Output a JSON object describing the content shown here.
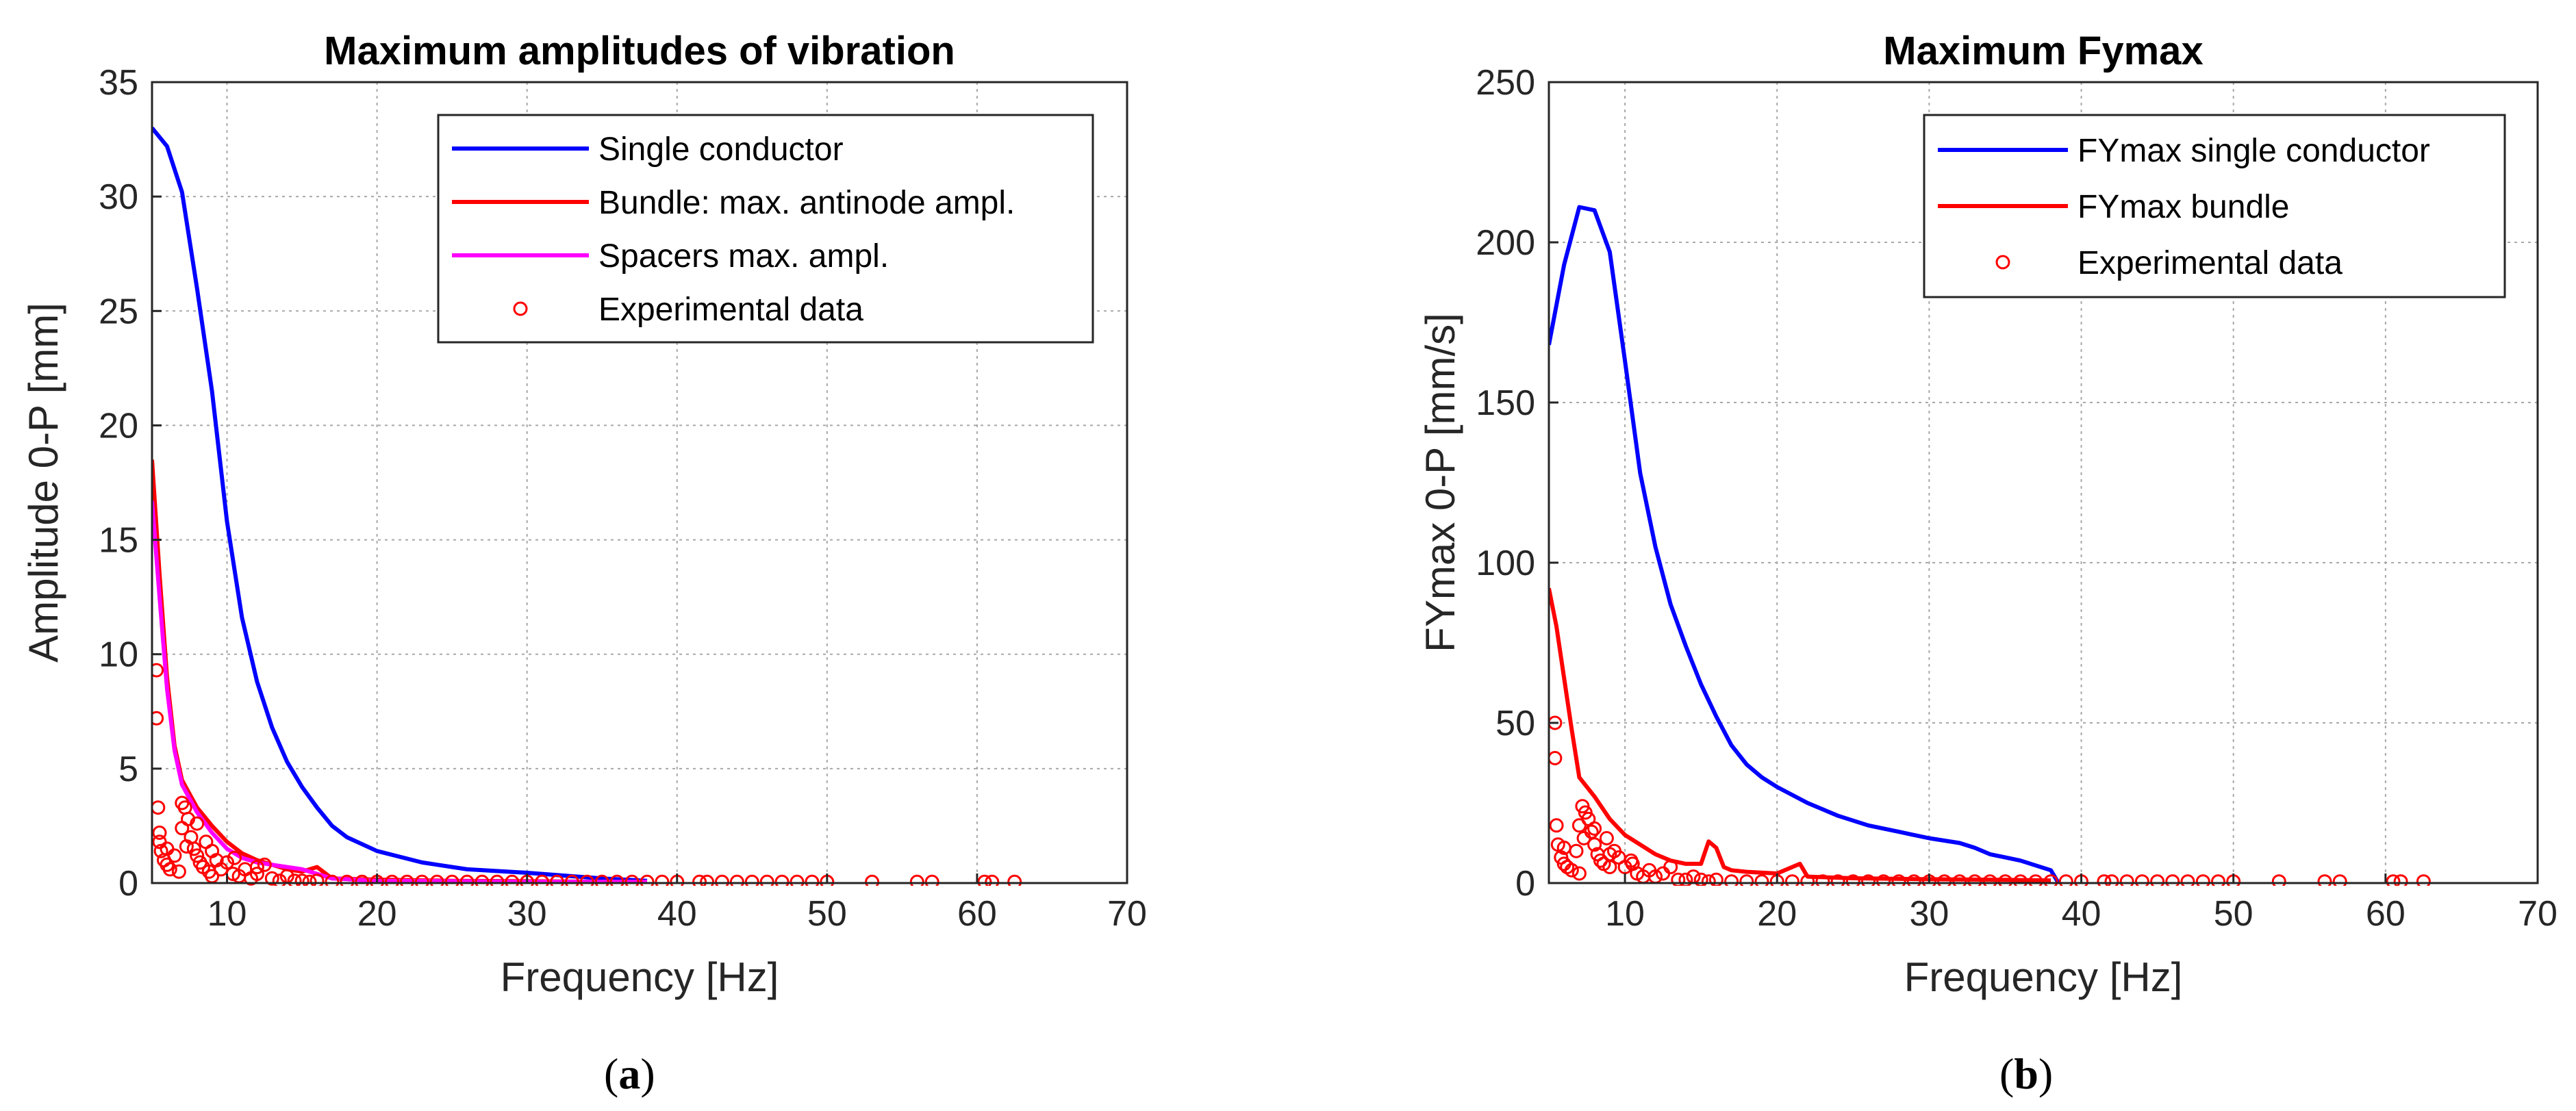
{
  "colors": {
    "blue": "#0000ff",
    "red": "#ff0000",
    "magenta": "#ff00ff"
  },
  "chart_data": [
    {
      "type": "line",
      "title": "Maximum amplitudes of vibration",
      "xlabel": "Frequency  [Hz]",
      "ylabel": "Amplitude 0-P [mm]",
      "xlim": [
        5,
        70
      ],
      "ylim": [
        0,
        35
      ],
      "xticks": [
        10,
        20,
        30,
        40,
        50,
        60,
        70
      ],
      "yticks": [
        0,
        5,
        10,
        15,
        20,
        25,
        30,
        35
      ],
      "caption": "a",
      "legend_position": "top-right",
      "series": [
        {
          "name": "Single conductor",
          "color": "blue",
          "kind": "line",
          "x": [
            5,
            6,
            7,
            8,
            9,
            10,
            11,
            12,
            13,
            14,
            15,
            16,
            17,
            18,
            20,
            23,
            26,
            30,
            33,
            35,
            38
          ],
          "y": [
            33,
            32.2,
            30.2,
            26,
            21.5,
            15.8,
            11.6,
            8.8,
            6.8,
            5.3,
            4.2,
            3.3,
            2.5,
            2.0,
            1.4,
            0.9,
            0.6,
            0.45,
            0.3,
            0.2,
            0.1
          ]
        },
        {
          "name": "Bundle: max. antinode ampl.",
          "color": "red",
          "kind": "line",
          "x": [
            5,
            5.5,
            6,
            6.5,
            7,
            8,
            9,
            10,
            11,
            12,
            13,
            14,
            15,
            16,
            17,
            20,
            25,
            30,
            35,
            38
          ],
          "y": [
            18.5,
            13.5,
            9,
            6,
            4.5,
            3.3,
            2.5,
            1.8,
            1.3,
            1.0,
            0.8,
            0.6,
            0.5,
            0.7,
            0.2,
            0.15,
            0.1,
            0.08,
            0.05,
            0.05
          ]
        },
        {
          "name": "Spacers max. ampl.",
          "color": "magenta",
          "kind": "line",
          "x": [
            5,
            5.5,
            6,
            6.5,
            7,
            8,
            9,
            10,
            11,
            12,
            13,
            14,
            15,
            16,
            17,
            20,
            25,
            30,
            35,
            38
          ],
          "y": [
            16.7,
            12.5,
            8.5,
            5.8,
            4.3,
            3.1,
            2.2,
            1.5,
            1.1,
            0.9,
            0.8,
            0.7,
            0.6,
            0.4,
            0.2,
            0.1,
            0.08,
            0.06,
            0.05,
            0.05
          ]
        },
        {
          "name": "Experimental data",
          "color": "red",
          "kind": "scatter",
          "x": [
            5.3,
            5.3,
            5.4,
            5.5,
            5.6,
            5.8,
            6.0,
            6.2,
            6.5,
            6.8,
            7.0,
            7.2,
            7.4,
            7.6,
            7.8,
            8.0,
            8.2,
            8.4,
            8.6,
            8.8,
            9.0,
            9.3,
            9.6,
            10.0,
            10.4,
            10.8,
            11.2,
            11.6,
            12.0,
            12.5,
            13.0,
            13.5,
            14.0,
            14.5,
            15.0,
            15.5,
            16.0,
            17.0,
            18.0,
            19.0,
            20.0,
            21.0,
            22.0,
            23.0,
            24.0,
            25.0,
            26.0,
            27.0,
            28.0,
            29.0,
            30.0,
            31.0,
            32.0,
            33.0,
            34.0,
            35.0,
            36.0,
            37.0,
            38.0,
            39.0,
            40.0,
            41.5,
            42.0,
            43.0,
            44.0,
            45.0,
            46.0,
            47.0,
            48.0,
            49.0,
            50.0,
            53.0,
            56.0,
            57.0,
            60.5,
            61.0,
            62.5,
            5.5,
            6.0,
            7.0,
            7.3,
            8.0,
            9.0,
            10.5,
            12.0
          ],
          "y": [
            9.3,
            7.2,
            3.3,
            2.2,
            1.4,
            1.0,
            0.8,
            0.6,
            1.2,
            0.5,
            3.5,
            3.3,
            2.8,
            2.0,
            1.5,
            1.2,
            0.9,
            0.7,
            1.8,
            0.5,
            1.4,
            1.0,
            0.6,
            0.9,
            0.4,
            0.3,
            0.6,
            0.2,
            0.4,
            0.8,
            0.2,
            0.1,
            0.3,
            0.1,
            0.1,
            0.05,
            0.1,
            0.05,
            0.05,
            0.05,
            0.05,
            0.05,
            0.05,
            0.05,
            0.05,
            0.05,
            0.05,
            0.05,
            0.05,
            0.05,
            0.05,
            0.05,
            0.05,
            0.05,
            0.05,
            0.05,
            0.05,
            0.05,
            0.05,
            0.05,
            0.05,
            0.05,
            0.05,
            0.05,
            0.05,
            0.05,
            0.05,
            0.05,
            0.05,
            0.05,
            0.05,
            0.05,
            0.05,
            0.05,
            0.05,
            0.05,
            0.05,
            1.8,
            1.5,
            2.4,
            1.6,
            2.6,
            0.3,
            1.1,
            0.7
          ]
        }
      ]
    },
    {
      "type": "line",
      "title": "Maximum Fymax",
      "xlabel": "Frequency  [Hz]",
      "ylabel": "FYmax 0-P [mm/s]",
      "xlim": [
        5,
        70
      ],
      "ylim": [
        0,
        250
      ],
      "xticks": [
        10,
        20,
        30,
        40,
        50,
        60,
        70
      ],
      "yticks": [
        0,
        50,
        100,
        150,
        200,
        250
      ],
      "caption": "b",
      "legend_position": "top-right",
      "series": [
        {
          "name": "FYmax single conductor",
          "color": "blue",
          "kind": "line",
          "x": [
            5,
            6,
            7,
            8,
            9,
            10,
            11,
            12,
            13,
            14,
            15,
            16,
            17,
            18,
            19,
            20,
            22,
            24,
            26,
            28,
            30,
            32,
            33,
            34,
            36,
            38,
            38.5
          ],
          "y": [
            168,
            193,
            211,
            210,
            197,
            163,
            128,
            105,
            87,
            74,
            62,
            52,
            43,
            37,
            33,
            30,
            25,
            21,
            18,
            16,
            14,
            12.5,
            11,
            9,
            7,
            4,
            0
          ]
        },
        {
          "name": "FYmax bundle",
          "color": "red",
          "kind": "line",
          "x": [
            5,
            5.5,
            6,
            6.5,
            7,
            7.5,
            8,
            9,
            10,
            11,
            12,
            13,
            14,
            15,
            15.5,
            16,
            16.5,
            17,
            18,
            20,
            21.5,
            22,
            25,
            30,
            35,
            38
          ],
          "y": [
            92,
            80,
            64,
            48,
            33,
            30,
            27,
            20,
            15,
            12,
            9,
            7,
            6,
            6,
            13,
            11,
            5,
            4,
            3.5,
            3,
            6,
            2,
            1.5,
            1.2,
            1.0,
            0.8
          ]
        },
        {
          "name": "Experimental data",
          "color": "red",
          "kind": "scatter",
          "x": [
            5.4,
            5.4,
            5.5,
            5.6,
            5.8,
            6.0,
            6.2,
            6.5,
            6.8,
            7.0,
            7.2,
            7.4,
            7.6,
            7.8,
            8.0,
            8.2,
            8.4,
            8.6,
            8.8,
            9.0,
            9.3,
            9.6,
            10.0,
            10.4,
            10.8,
            11.2,
            11.6,
            12.0,
            12.5,
            13.0,
            13.5,
            14.0,
            14.5,
            15.0,
            15.5,
            16.0,
            17.0,
            18.0,
            19.0,
            20.0,
            21.0,
            22.0,
            23.0,
            24.0,
            25.0,
            26.0,
            27.0,
            28.0,
            29.0,
            30.0,
            31.0,
            32.0,
            33.0,
            34.0,
            35.0,
            36.0,
            37.0,
            38.0,
            39.0,
            40.0,
            41.5,
            42.0,
            43.0,
            44.0,
            45.0,
            46.0,
            47.0,
            48.0,
            49.0,
            50.0,
            53.0,
            56.0,
            57.0,
            60.5,
            61.0,
            62.5,
            6.0,
            7.0,
            7.3,
            8.0,
            9.0,
            10.5
          ],
          "y": [
            50,
            39,
            18,
            12,
            8,
            6,
            5,
            4,
            10,
            3,
            24,
            22,
            20,
            16,
            12,
            9,
            7,
            6,
            14,
            5,
            10,
            8,
            5,
            7,
            3,
            2,
            4,
            2,
            3,
            5,
            1,
            1,
            2,
            1,
            0.5,
            1,
            0.5,
            0.5,
            0.5,
            0.5,
            0.5,
            0.5,
            0.5,
            0.5,
            0.5,
            0.5,
            0.5,
            0.5,
            0.5,
            0.5,
            0.5,
            0.5,
            0.5,
            0.5,
            0.5,
            0.5,
            0.5,
            0.5,
            0.5,
            0.5,
            0.5,
            0.5,
            0.5,
            0.5,
            0.5,
            0.5,
            0.5,
            0.5,
            0.5,
            0.5,
            0.5,
            0.5,
            0.5,
            0.5,
            0.5,
            0.5,
            11,
            18,
            14,
            17,
            9,
            6
          ]
        }
      ]
    }
  ]
}
